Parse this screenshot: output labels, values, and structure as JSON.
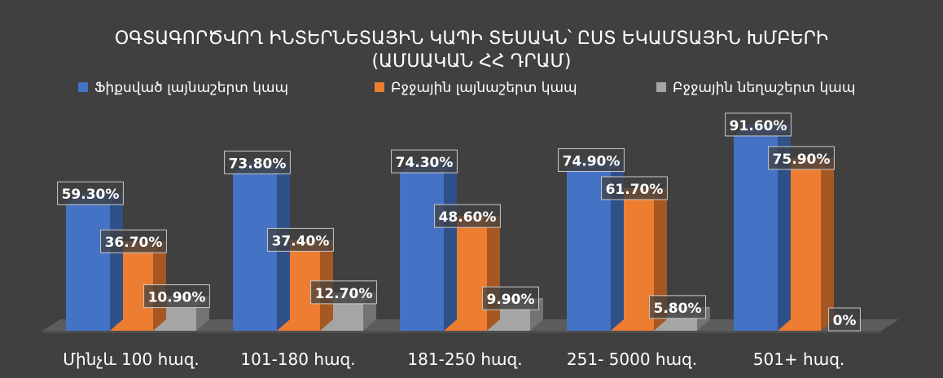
{
  "chart_data": {
    "type": "bar",
    "title_line1": "ՕԳՏԱԳՈՐԾՎՈՂ ԻՆՏԵՐՆԵՏԱՅԻՆ ԿԱՊԻ ՏԵՍԱԿՆ՝ ԸՍՏ ԵԿԱՄՏԱՅԻՆ ԽՄԲԵՐԻ",
    "title_line2": "(ԱՄՍԱԿԱՆ ՀՀ ԴՐԱՄ)",
    "categories": [
      "Մինչև 100 հազ.",
      "101-180 հազ.",
      "181-250 հազ.",
      "251- 5000 հազ.",
      "501+ հազ."
    ],
    "series": [
      {
        "name": "Ֆիքսված լայնաշերտ կապ",
        "values": [
          59.3,
          73.8,
          74.3,
          74.9,
          91.6
        ],
        "labels": [
          "59.30%",
          "73.80%",
          "74.30%",
          "74.90%",
          "91.60%"
        ],
        "color": "#4472C4"
      },
      {
        "name": "Բջջային լայնաշերտ կապ",
        "values": [
          36.7,
          37.4,
          48.6,
          61.7,
          75.9
        ],
        "labels": [
          "36.70%",
          "37.40%",
          "48.60%",
          "61.70%",
          "75.90%"
        ],
        "color": "#ED7D31"
      },
      {
        "name": "Բջջային նեղաշերտ կապ",
        "values": [
          10.9,
          12.7,
          9.9,
          5.8,
          0
        ],
        "labels": [
          "10.90%",
          "12.70%",
          "9.90%",
          "5.80%",
          "0%"
        ],
        "color": "#A5A5A5"
      }
    ],
    "ylim": [
      0,
      100
    ],
    "grid": false,
    "legend_position": "top",
    "background": "#404040"
  }
}
